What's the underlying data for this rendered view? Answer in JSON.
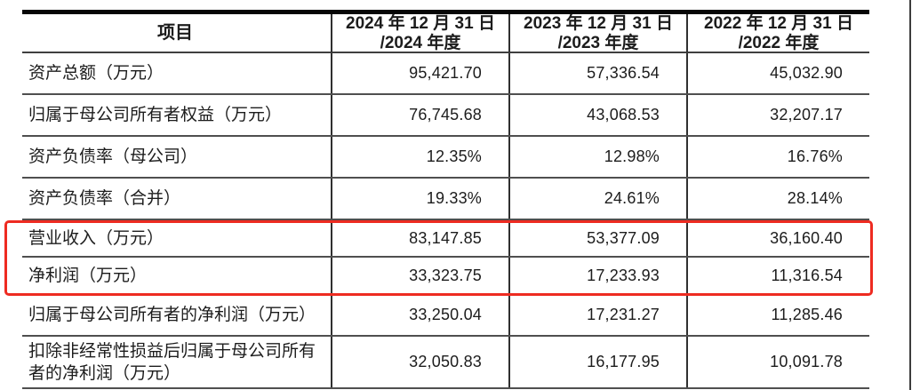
{
  "table": {
    "header": {
      "item_label": "项目",
      "col_2024_line1": "2024 年 12 月 31 日",
      "col_2024_line2": "/2024 年度",
      "col_2023_line1": "2023 年 12 月 31 日",
      "col_2023_line2": "/2023 年度",
      "col_2022_line1": "2022 年 12 月 31 日",
      "col_2022_line2": "/2022 年度"
    },
    "rows": [
      {
        "label": "资产总额（万元）",
        "v2024": "95,421.70",
        "v2023": "57,336.54",
        "v2022": "45,032.90",
        "highlighted": false
      },
      {
        "label": "归属于母公司所有者权益（万元）",
        "v2024": "76,745.68",
        "v2023": "43,068.53",
        "v2022": "32,207.17",
        "highlighted": false
      },
      {
        "label": "资产负债率（母公司）",
        "v2024": "12.35%",
        "v2023": "12.98%",
        "v2022": "16.76%",
        "highlighted": false
      },
      {
        "label": "资产负债率（合并）",
        "v2024": "19.33%",
        "v2023": "24.61%",
        "v2022": "28.14%",
        "highlighted": false
      },
      {
        "label": "营业收入（万元）",
        "v2024": "83,147.85",
        "v2023": "53,377.09",
        "v2022": "36,160.40",
        "highlighted": true
      },
      {
        "label": "净利润（万元）",
        "v2024": "33,323.75",
        "v2023": "17,233.93",
        "v2022": "11,316.54",
        "highlighted": true
      },
      {
        "label": "归属于母公司所有者的净利润（万元）",
        "v2024": "33,250.04",
        "v2023": "17,231.27",
        "v2022": "11,285.46",
        "highlighted": false
      },
      {
        "label": "扣除非经常性损益后归属于母公司所有者的净利润（万元）",
        "v2024": "32,050.83",
        "v2023": "16,177.95",
        "v2022": "10,091.78",
        "highlighted": false
      }
    ],
    "annotation": {
      "highlight_color": "#ee2b21",
      "highlighted_rows": [
        "营业收入（万元）",
        "净利润（万元）"
      ]
    }
  }
}
